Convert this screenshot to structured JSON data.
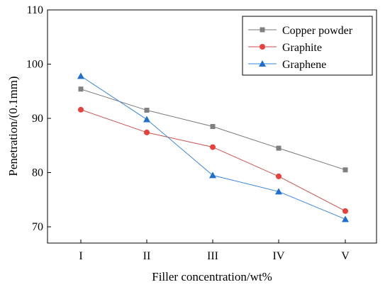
{
  "chart_data": {
    "type": "line",
    "categories": [
      "I",
      "II",
      "III",
      "IV",
      "V"
    ],
    "xlabel": "Filler concentration/wt%",
    "ylabel": "Penetration/(0.1mm)",
    "ylim": [
      67,
      110
    ],
    "yticks": [
      70,
      80,
      90,
      100,
      110
    ],
    "grid": false,
    "legend_position": "top-right",
    "series": [
      {
        "name": "Copper powder",
        "color": "#808080",
        "line_color": "#777777",
        "marker": "square",
        "values": [
          95.4,
          91.5,
          88.5,
          84.5,
          80.5
        ]
      },
      {
        "name": "Graphite",
        "color": "#e8403a",
        "line_color": "#c8504a",
        "marker": "circle",
        "values": [
          91.6,
          87.4,
          84.7,
          79.3,
          72.9
        ]
      },
      {
        "name": "Graphene",
        "color": "#1f6fd0",
        "line_color": "#3a86d8",
        "marker": "triangle",
        "values": [
          97.8,
          89.8,
          79.5,
          76.5,
          71.4
        ]
      }
    ]
  }
}
